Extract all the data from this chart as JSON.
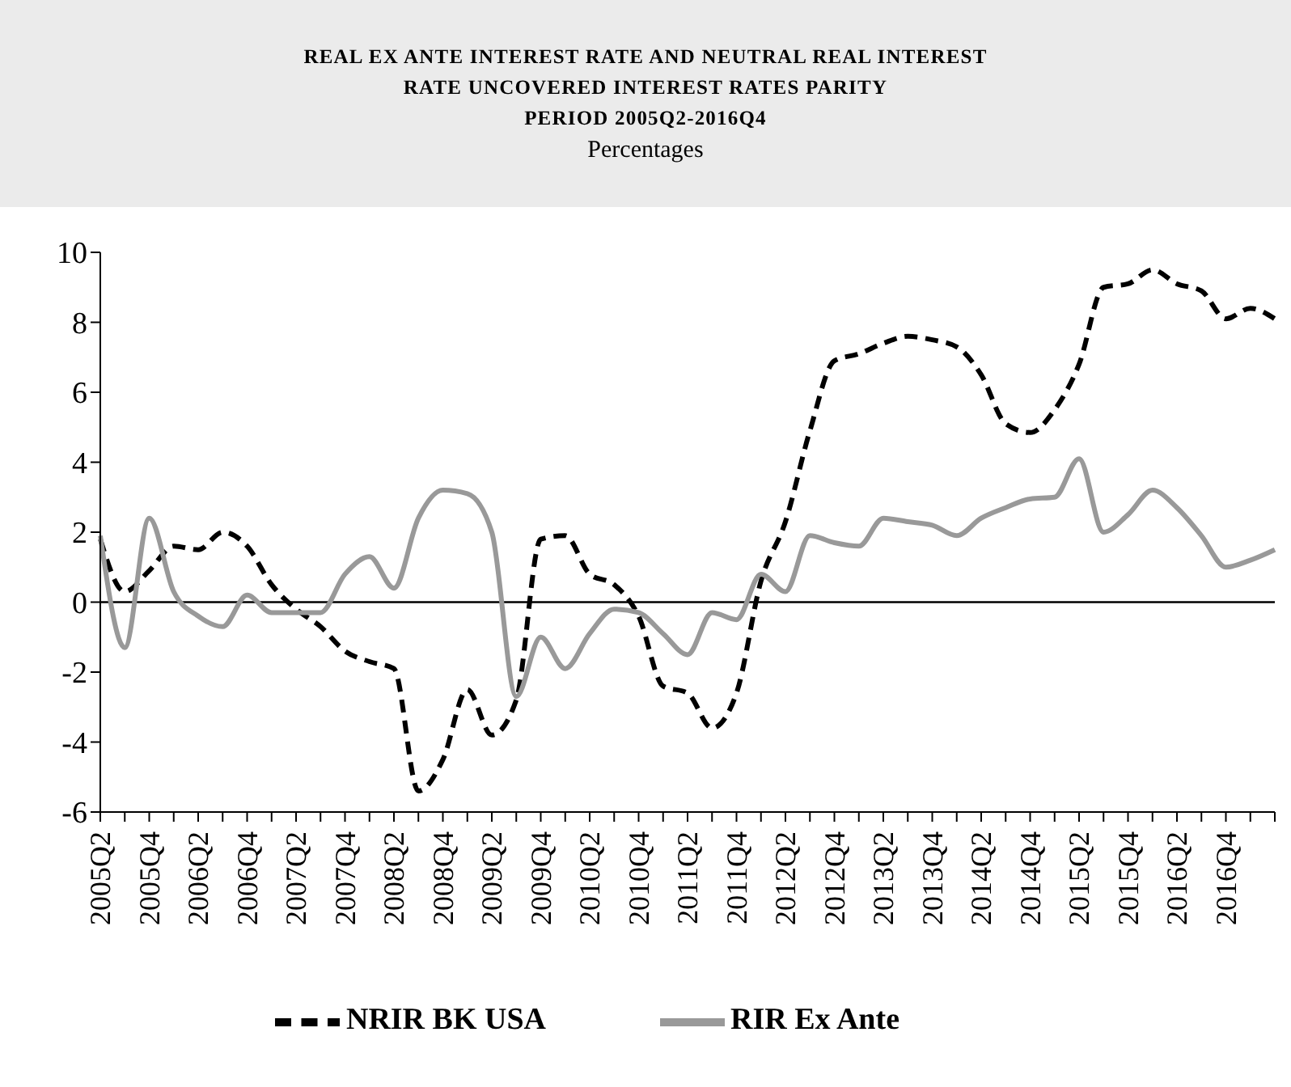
{
  "chart_data": {
    "type": "line",
    "title": "REAL EX ANTE INTEREST RATE AND NEUTRAL REAL INTEREST\nRATE UNCOVERED INTEREST RATES PARITY\nPERIOD 2005Q2-2016Q4",
    "subtitle": "Percentages",
    "categories": [
      "2005Q2",
      null,
      "2005Q4",
      null,
      "2006Q2",
      null,
      "2006Q4",
      null,
      "2007Q2",
      null,
      "2007Q4",
      null,
      "2008Q2",
      null,
      "2008Q4",
      null,
      "2009Q2",
      null,
      "2009Q4",
      null,
      "2010Q2",
      null,
      "2010Q4",
      null,
      "2011Q2",
      null,
      "2011Q4",
      null,
      "2012Q2",
      null,
      "2012Q4",
      null,
      "2013Q2",
      null,
      "2013Q4",
      null,
      "2014Q2",
      null,
      "2014Q4",
      null,
      "2015Q2",
      null,
      "2015Q4",
      null,
      "2016Q2",
      null,
      "2016Q4",
      null,
      null
    ],
    "series": [
      {
        "name": "NRIR BK USA",
        "color": "#000000",
        "line_style": "dashed",
        "values": [
          1.8,
          0.3,
          0.9,
          1.6,
          1.5,
          2.0,
          1.6,
          0.5,
          -0.2,
          -0.7,
          -1.4,
          -1.7,
          -1.9,
          -5.4,
          -4.5,
          -2.5,
          -3.8,
          -2.8,
          1.8,
          1.9,
          0.8,
          0.5,
          -0.4,
          -2.4,
          -2.6,
          -3.6,
          -2.6,
          0.6,
          2.3,
          4.9,
          6.9,
          7.1,
          7.4,
          7.6,
          7.5,
          7.3,
          6.5,
          5.1,
          4.85,
          5.5,
          6.8,
          9.0,
          9.1,
          9.5,
          9.1,
          8.9,
          8.1,
          8.4,
          8.1
        ]
      },
      {
        "name": "RIR Ex Ante",
        "color": "#999999",
        "line_style": "solid",
        "values": [
          1.9,
          -1.3,
          2.4,
          0.3,
          -0.4,
          -0.7,
          0.2,
          -0.3,
          -0.3,
          -0.3,
          0.8,
          1.3,
          0.4,
          2.4,
          3.2,
          3.1,
          2.0,
          -2.7,
          -1.0,
          -1.9,
          -0.9,
          -0.2,
          -0.3,
          -0.9,
          -1.5,
          -0.3,
          -0.5,
          0.8,
          0.3,
          1.9,
          1.7,
          1.6,
          2.4,
          2.3,
          2.2,
          1.9,
          2.4,
          2.7,
          2.95,
          3.0,
          4.1,
          2.0,
          2.5,
          3.2,
          2.7,
          1.9,
          1.0,
          1.2,
          1.5
        ]
      }
    ],
    "ylim": [
      -6,
      10
    ],
    "yticks": [
      -6,
      -4,
      -2,
      0,
      2,
      4,
      6,
      8,
      10
    ],
    "grid": false,
    "legend": "bottom",
    "marker": "none",
    "ref_lines": [
      {
        "axis": "y",
        "value": 0,
        "color": "#000000"
      }
    ]
  }
}
